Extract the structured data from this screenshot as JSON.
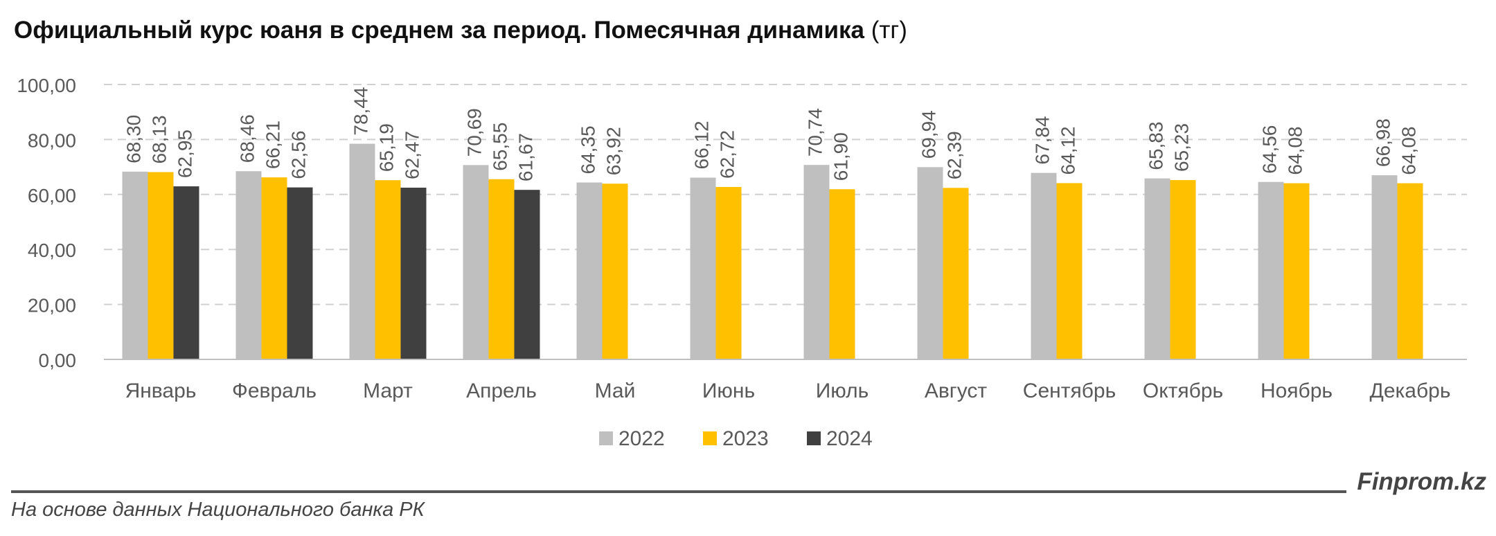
{
  "title": {
    "main": "Официальный курс юаня в среднем за период. Помесячная динамика",
    "unit": "(тг)"
  },
  "footer": {
    "brand": "Finprom.kz",
    "source": "На основе данных Национального банка РК"
  },
  "colors": {
    "2022": "#BFBFBF",
    "2023": "#FFC000",
    "2024": "#404040",
    "grid": "#D0D0D0",
    "axis": "#BFBFBF",
    "text": "#595959"
  },
  "chart_data": {
    "type": "bar",
    "categories": [
      "Январь",
      "Февраль",
      "Март",
      "Апрель",
      "Май",
      "Июнь",
      "Июль",
      "Август",
      "Сентябрь",
      "Октябрь",
      "Ноябрь",
      "Декабрь"
    ],
    "series": [
      {
        "name": "2022",
        "values": [
          68.3,
          68.46,
          78.44,
          70.69,
          64.35,
          66.12,
          70.74,
          69.94,
          67.84,
          65.83,
          64.56,
          66.98
        ],
        "labels": [
          "68,30",
          "68,46",
          "78,44",
          "70,69",
          "64,35",
          "66,12",
          "70,74",
          "69,94",
          "67,84",
          "65,83",
          "64,56",
          "66,98"
        ]
      },
      {
        "name": "2023",
        "values": [
          68.13,
          66.21,
          65.19,
          65.55,
          63.92,
          62.72,
          61.9,
          62.39,
          64.12,
          65.23,
          64.08,
          64.08
        ],
        "labels": [
          "68,13",
          "66,21",
          "65,19",
          "65,55",
          "63,92",
          "62,72",
          "61,90",
          "62,39",
          "64,12",
          "65,23",
          "64,08",
          "64,08"
        ]
      },
      {
        "name": "2024",
        "values": [
          62.95,
          62.56,
          62.47,
          61.67,
          null,
          null,
          null,
          null,
          null,
          null,
          null,
          null
        ],
        "labels": [
          "62,95",
          "62,56",
          "62,47",
          "61,67",
          "",
          "",
          "",
          "",
          "",
          "",
          "",
          ""
        ]
      }
    ],
    "ylim": [
      0,
      100
    ],
    "yticks": [
      0,
      20,
      40,
      60,
      80,
      100
    ],
    "ytick_labels": [
      "0,00",
      "20,00",
      "40,00",
      "60,00",
      "80,00",
      "100,00"
    ],
    "grid": true,
    "legend": "bottom-center"
  }
}
